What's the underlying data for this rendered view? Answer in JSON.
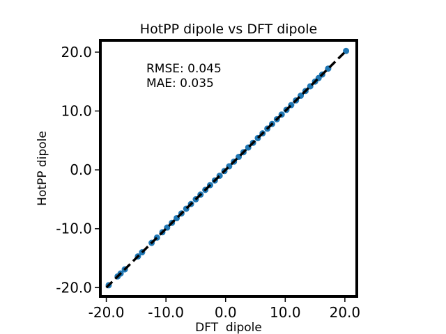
{
  "chart_data": {
    "type": "scatter",
    "title": "HotPP dipole vs DFT dipole",
    "xlabel": "DFT  dipole",
    "ylabel": "HotPP dipole",
    "xlim": [
      -21.0,
      22.0
    ],
    "ylim": [
      -21.5,
      22.0
    ],
    "xticks": [
      -20,
      -10,
      0,
      10,
      20
    ],
    "yticks": [
      -20,
      -10,
      0,
      10,
      20
    ],
    "xtick_labels": [
      "-20.0",
      "-10.0",
      "0.0",
      "10.0",
      "20.0"
    ],
    "ytick_labels": [
      "-20.0",
      "-10.0",
      "0.0",
      "10.0",
      "20.0"
    ],
    "annotations": [
      "RMSE: 0.045",
      "MAE: 0.035"
    ],
    "reference_line": {
      "from": [
        -20.0,
        -20.0
      ],
      "to": [
        20.3,
        20.3
      ],
      "style": "dashed",
      "color": "#000000"
    },
    "marker_color": "#1f77b4",
    "grid": false,
    "series": [
      {
        "x": [
          -19.6,
          -18.1,
          -17.6,
          -16.9,
          -14.7,
          -14.0,
          -12.4,
          -11.5,
          -10.6,
          -9.8,
          -9.0,
          -8.2,
          -7.4,
          -6.6,
          -5.8,
          -5.0,
          -4.2,
          -3.4,
          -2.6,
          -1.8,
          -1.0,
          -0.2,
          0.6,
          1.4,
          2.2,
          3.0,
          3.8,
          4.6,
          5.4,
          6.2,
          7.0,
          7.8,
          8.6,
          9.4,
          10.2,
          11.0,
          11.8,
          12.6,
          13.4,
          14.2,
          15.0,
          15.6,
          16.2,
          17.2,
          20.2
        ],
        "y": [
          -19.6,
          -18.1,
          -17.6,
          -16.9,
          -14.7,
          -14.0,
          -12.4,
          -11.5,
          -10.6,
          -9.8,
          -9.0,
          -8.2,
          -7.4,
          -6.6,
          -5.8,
          -5.0,
          -4.2,
          -3.4,
          -2.6,
          -1.8,
          -1.0,
          -0.2,
          0.6,
          1.4,
          2.2,
          3.0,
          3.8,
          4.6,
          5.4,
          6.2,
          7.0,
          7.8,
          8.6,
          9.4,
          10.2,
          11.0,
          11.8,
          12.6,
          13.4,
          14.2,
          15.0,
          15.6,
          16.2,
          17.2,
          20.2
        ]
      }
    ]
  }
}
